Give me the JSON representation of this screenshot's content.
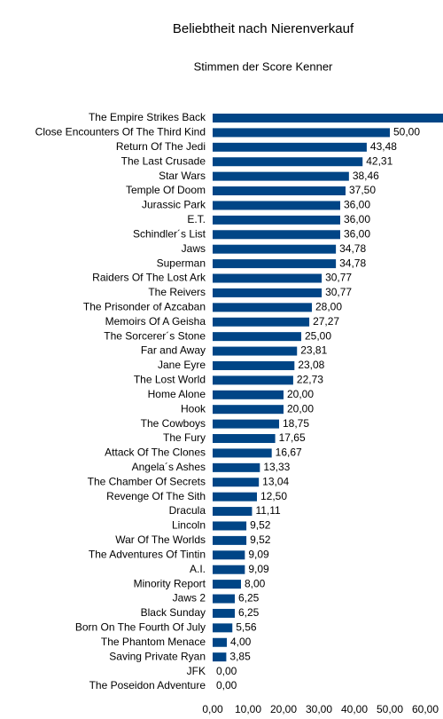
{
  "chart_data": {
    "type": "hbar",
    "title": "Beliebtheit nach Nierenverkauf",
    "subtitle": "Stimmen der Score Kenner",
    "categories": [
      "The Empire Strikes Back",
      "Close Encounters Of The Third Kind",
      "Return Of The Jedi",
      "The Last Crusade",
      "Star Wars",
      "Temple Of Doom",
      "Jurassic Park",
      "E.T.",
      "Schindler´s List",
      "Jaws",
      "Superman",
      "Raiders Of The Lost Ark",
      "The Reivers",
      "The Prisonder of Azcaban",
      "Memoirs Of A Geisha",
      "The Sorcerer´s Stone",
      "Far and Away",
      "Jane Eyre",
      "The Lost World",
      "Home Alone",
      "Hook",
      "The Cowboys",
      "The Fury",
      "Attack Of The Clones",
      "Angela´s Ashes",
      "The Chamber Of Secrets",
      "Revenge Of The Sith",
      "Dracula",
      "Lincoln",
      "War Of The Worlds",
      "The Adventures Of Tintin",
      "A.I.",
      "Minority Report",
      "Jaws 2",
      "Black Sunday",
      "Born On The Fourth Of July",
      "The Phantom Menace",
      "Saving Private Ryan",
      "JFK",
      "The Poseidon Adventure"
    ],
    "values": [
      65,
      50,
      43.48,
      42.31,
      38.46,
      37.5,
      36,
      36,
      36,
      34.78,
      34.78,
      30.77,
      30.77,
      28,
      27.27,
      25,
      23.81,
      23.08,
      22.73,
      20,
      20,
      18.75,
      17.65,
      16.67,
      13.33,
      13.04,
      12.5,
      11.11,
      9.52,
      9.52,
      9.09,
      9.09,
      8,
      6.25,
      6.25,
      5.56,
      4,
      3.85,
      0,
      0
    ],
    "value_labels": [
      null,
      "50,00",
      "43,48",
      "42,31",
      "38,46",
      "37,50",
      "36,00",
      "36,00",
      "36,00",
      "34,78",
      "34,78",
      "30,77",
      "30,77",
      "28,00",
      "27,27",
      "25,00",
      "23,81",
      "23,08",
      "22,73",
      "20,00",
      "20,00",
      "18,75",
      "17,65",
      "16,67",
      "13,33",
      "13,04",
      "12,50",
      "11,11",
      "9,52",
      "9,52",
      "9,09",
      "9,09",
      "8,00",
      "6,25",
      "6,25",
      "5,56",
      "4,00",
      "3,85",
      "0,00",
      "0,00"
    ],
    "color": "#004586",
    "xlim": [
      0,
      65
    ],
    "xticks": [
      {
        "value": 0,
        "label": "0,00"
      },
      {
        "value": 10,
        "label": "10,00"
      },
      {
        "value": 20,
        "label": "20,00"
      },
      {
        "value": 30,
        "label": "30,00"
      },
      {
        "value": 40,
        "label": "40,00"
      },
      {
        "value": 50,
        "label": "50,00"
      },
      {
        "value": 60,
        "label": "60,00"
      }
    ]
  }
}
